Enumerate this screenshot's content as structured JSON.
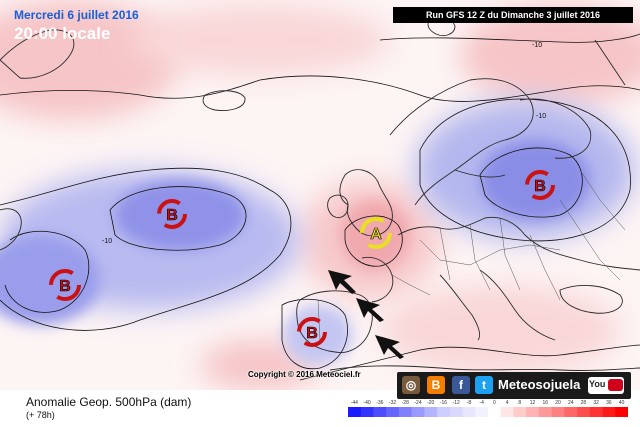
{
  "header": {
    "date": "Mercredi 6 juillet 2016",
    "time": "20:00 locale",
    "run": "Run GFS 12 Z du Dimanche 3 juillet 2016"
  },
  "map": {
    "contour_labels": [
      "-10",
      "-10",
      "-10"
    ],
    "pressure_centers": [
      {
        "letter": "B",
        "type": "low",
        "region": "mid-Atlantic"
      },
      {
        "letter": "B",
        "type": "low",
        "region": "west Atlantic"
      },
      {
        "letter": "B",
        "type": "low",
        "region": "Iberia"
      },
      {
        "letter": "B",
        "type": "low",
        "region": "Eastern Europe"
      },
      {
        "letter": "A",
        "type": "high",
        "region": "British Isles"
      }
    ],
    "colors": {
      "low_marker": "#cc1111",
      "high_marker": "#e8e020",
      "arrow": "#111111"
    },
    "copyright": "Copyright © 2016 Meteociel.fr"
  },
  "footer": {
    "title": "Anomalie Geop. 500hPa (dam)",
    "forecast_hours": "(+ 78h)"
  },
  "scale": {
    "labels": [
      "-44",
      "-40",
      "-36",
      "-32",
      "-28",
      "-24",
      "-20",
      "-16",
      "-12",
      "-8",
      "-4",
      "0",
      "4",
      "8",
      "12",
      "16",
      "20",
      "24",
      "28",
      "32",
      "36",
      "40"
    ],
    "colors": [
      "#1a1aff",
      "#3333ff",
      "#4d4dff",
      "#6666ff",
      "#8080ff",
      "#9999ff",
      "#b3b3ff",
      "#ccccff",
      "#d9d9ff",
      "#e6e6ff",
      "#f2f2ff",
      "#ffffff",
      "#ffe6e6",
      "#ffcccc",
      "#ffb3b3",
      "#ff9999",
      "#ff8080",
      "#ff6666",
      "#ff4d4d",
      "#ff3333",
      "#ff1a1a",
      "#ff0000"
    ]
  },
  "social": {
    "name": "Meteosojuela",
    "youtube_label": "You",
    "icons": [
      "instagram-icon",
      "blogger-icon",
      "facebook-icon",
      "twitter-icon",
      "youtube-icon"
    ]
  }
}
